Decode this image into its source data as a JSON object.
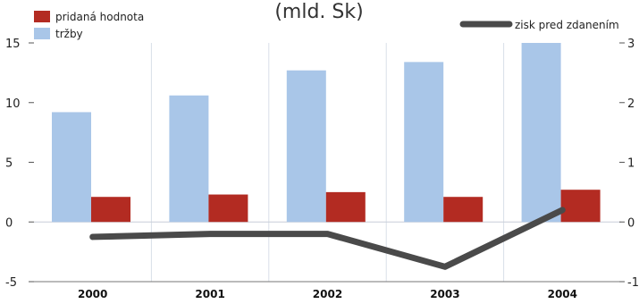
{
  "chart_data": {
    "type": "bar",
    "title": "(mld. Sk)",
    "categories": [
      "2000",
      "2001",
      "2002",
      "2003",
      "2004"
    ],
    "y_left": {
      "ylim": [
        -5,
        15
      ],
      "ticks": [
        "-5",
        "0",
        "5",
        "10",
        "15"
      ]
    },
    "y_right": {
      "ylim": [
        -1,
        3
      ],
      "ticks": [
        "-1",
        "0",
        "1",
        "2",
        "3"
      ]
    },
    "grid": "vertical",
    "legend_placement": "top-left, top-right",
    "series": [
      {
        "name": "tržby",
        "kind": "bar",
        "axis": "left",
        "color": "#a9c6e8",
        "values": [
          9.2,
          10.6,
          12.7,
          13.4,
          15.0
        ]
      },
      {
        "name": "pridaná hodnota",
        "kind": "bar",
        "axis": "left",
        "color": "#b32b22",
        "values": [
          2.1,
          2.3,
          2.5,
          2.1,
          2.7
        ]
      },
      {
        "name": "zisk pred zdanením",
        "kind": "line",
        "axis": "right",
        "color": "#4a4a4a",
        "values": [
          -0.25,
          -0.2,
          -0.2,
          -0.75,
          0.2
        ]
      }
    ]
  }
}
